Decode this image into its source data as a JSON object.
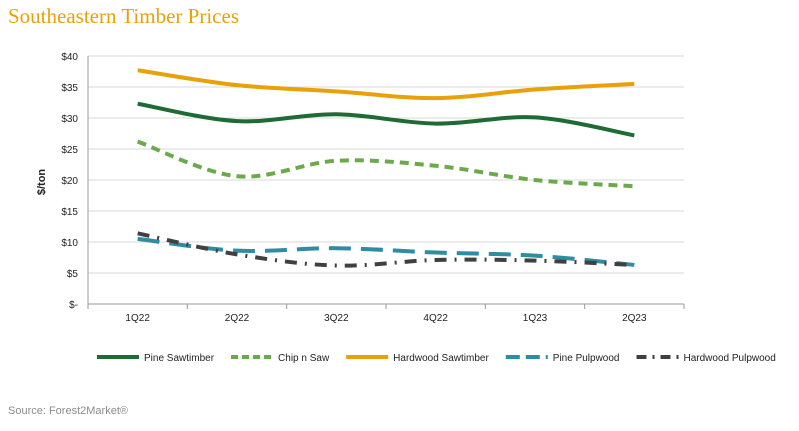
{
  "title": "Southeastern Timber Prices",
  "source": "Source: Forest2Market®",
  "chart_data": {
    "type": "line",
    "title": "Southeastern Timber Prices",
    "xlabel": "",
    "ylabel": "$/ton",
    "categories": [
      "1Q22",
      "2Q22",
      "3Q22",
      "4Q22",
      "1Q23",
      "2Q23"
    ],
    "ylim": [
      0,
      40
    ],
    "yticks": [
      0,
      5,
      10,
      15,
      20,
      25,
      30,
      35,
      40
    ],
    "ytick_labels": [
      "$-",
      "$5",
      "$10",
      "$15",
      "$20",
      "$25",
      "$30",
      "$35",
      "$40"
    ],
    "grid": true,
    "legend_position": "bottom",
    "series": [
      {
        "name": "Pine Sawtimber",
        "values": [
          32.3,
          29.5,
          30.6,
          29.1,
          30.1,
          27.2
        ],
        "color": "#1e6b34",
        "style": "solid"
      },
      {
        "name": "Chip n Saw",
        "values": [
          26.2,
          20.6,
          23.1,
          22.3,
          20.0,
          19.0
        ],
        "color": "#6aaa4b",
        "style": "dashed"
      },
      {
        "name": "Hardwood Sawtimber",
        "values": [
          37.7,
          35.3,
          34.3,
          33.2,
          34.6,
          35.5
        ],
        "color": "#e8a10b",
        "style": "solid"
      },
      {
        "name": "Pine Pulpwood",
        "values": [
          10.5,
          8.6,
          9.0,
          8.3,
          7.8,
          6.3
        ],
        "color": "#2e8ca3",
        "style": "longdash"
      },
      {
        "name": "Hardwood Pulpwood",
        "values": [
          11.4,
          8.0,
          6.2,
          7.1,
          7.0,
          6.3
        ],
        "color": "#404040",
        "style": "dashdot"
      }
    ]
  }
}
